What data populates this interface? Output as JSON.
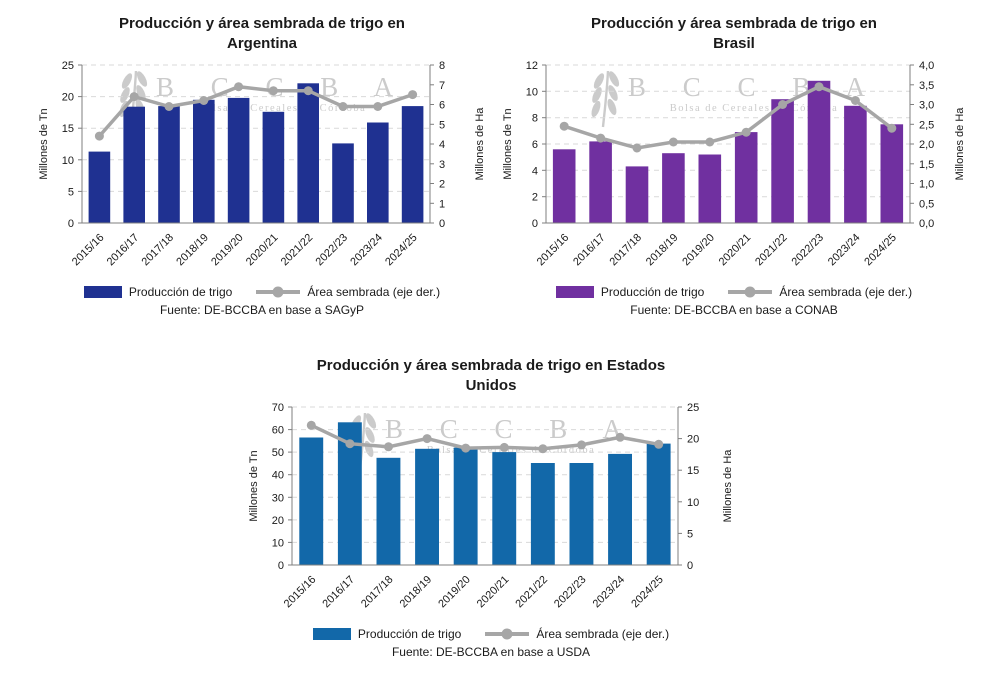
{
  "watermark": {
    "acronym": "B C C B A",
    "subtitle": "Bolsa de Cereales de Córdoba",
    "color": "#cbcbcb"
  },
  "shared_colors": {
    "line": "#A6A6A6",
    "grid": "#D9D9D9",
    "axis": "#7F7F7F",
    "text": "#1a1a1a"
  },
  "chart_data": [
    {
      "type": "bar+line",
      "country": "Argentina",
      "title_lines": [
        "Producción y área sembrada de trigo en",
        "Argentina"
      ],
      "categories": [
        "2015/16",
        "2016/17",
        "2017/18",
        "2018/19",
        "2019/20",
        "2020/21",
        "2021/22",
        "2022/23",
        "2023/24",
        "2024/25"
      ],
      "series": [
        {
          "name": "Producción de trigo",
          "type": "bar",
          "axis": "left",
          "values": [
            11.3,
            18.4,
            18.5,
            19.5,
            19.8,
            17.6,
            22.1,
            12.6,
            15.9,
            18.5
          ]
        },
        {
          "name": "Área sembrada (eje der.)",
          "type": "line",
          "axis": "right",
          "values": [
            4.4,
            6.4,
            5.9,
            6.2,
            6.9,
            6.7,
            6.7,
            5.9,
            5.9,
            6.5
          ]
        }
      ],
      "left_axis": {
        "label": "Millones de Tn",
        "min": 0,
        "max": 25,
        "step": 5,
        "decimals": 0
      },
      "right_axis": {
        "label": "Millones de Ha",
        "min": 0,
        "max": 8,
        "step": 1,
        "decimals": 0
      },
      "grid": true,
      "legend_position": "bottom",
      "source": "Fuente: DE-BCCBA en base a SAGyP",
      "colors": {
        "bar": "#1F3191",
        "line": "#A6A6A6"
      }
    },
    {
      "type": "bar+line",
      "country": "Brasil",
      "title_lines": [
        "Producción y área sembrada de trigo en",
        "Brasil"
      ],
      "categories": [
        "2015/16",
        "2016/17",
        "2017/18",
        "2018/19",
        "2019/20",
        "2020/21",
        "2021/22",
        "2022/23",
        "2023/24",
        "2024/25"
      ],
      "series": [
        {
          "name": "Producción de trigo",
          "type": "bar",
          "axis": "left",
          "values": [
            5.6,
            6.2,
            4.3,
            5.3,
            5.2,
            6.9,
            9.4,
            10.8,
            8.9,
            7.5
          ]
        },
        {
          "name": "Área sembrada (eje der.)",
          "type": "line",
          "axis": "right",
          "values": [
            2.45,
            2.15,
            1.9,
            2.05,
            2.05,
            2.3,
            3.0,
            3.45,
            3.1,
            2.4
          ]
        }
      ],
      "left_axis": {
        "label": "Millones de Tn",
        "min": 0,
        "max": 12,
        "step": 2,
        "decimals": 0
      },
      "right_axis": {
        "label": "Millones de Ha",
        "min": 0,
        "max": 4,
        "step": 0.5,
        "decimals": 1
      },
      "grid": true,
      "legend_position": "bottom",
      "source": "Fuente: DE-BCCBA en base a CONAB",
      "colors": {
        "bar": "#7030A0",
        "line": "#A6A6A6"
      }
    },
    {
      "type": "bar+line",
      "country": "Estados Unidos",
      "title_lines": [
        "Producción y área sembrada de trigo en Estados",
        "Unidos"
      ],
      "categories": [
        "2015/16",
        "2016/17",
        "2017/18",
        "2018/19",
        "2019/20",
        "2020/21",
        "2021/22",
        "2022/23",
        "2023/24",
        "2024/25"
      ],
      "series": [
        {
          "name": "Producción de trigo",
          "type": "bar",
          "axis": "left",
          "values": [
            56.5,
            63.2,
            47.5,
            51.5,
            52.0,
            50.0,
            45.2,
            45.2,
            49.2,
            53.8
          ]
        },
        {
          "name": "Área sembrada (eje der.)",
          "type": "line",
          "axis": "right",
          "values": [
            22.1,
            19.2,
            18.7,
            20.0,
            18.5,
            18.6,
            18.4,
            19.0,
            20.2,
            19.1
          ]
        }
      ],
      "left_axis": {
        "label": "Millones de Tn",
        "min": 0,
        "max": 70,
        "step": 10,
        "decimals": 0
      },
      "right_axis": {
        "label": "Millones de Ha",
        "min": 0,
        "max": 25,
        "step": 5,
        "decimals": 0
      },
      "grid": true,
      "legend_position": "bottom",
      "source": "Fuente: DE-BCCBA en base a USDA",
      "colors": {
        "bar": "#1268A9",
        "line": "#A6A6A6"
      }
    }
  ]
}
